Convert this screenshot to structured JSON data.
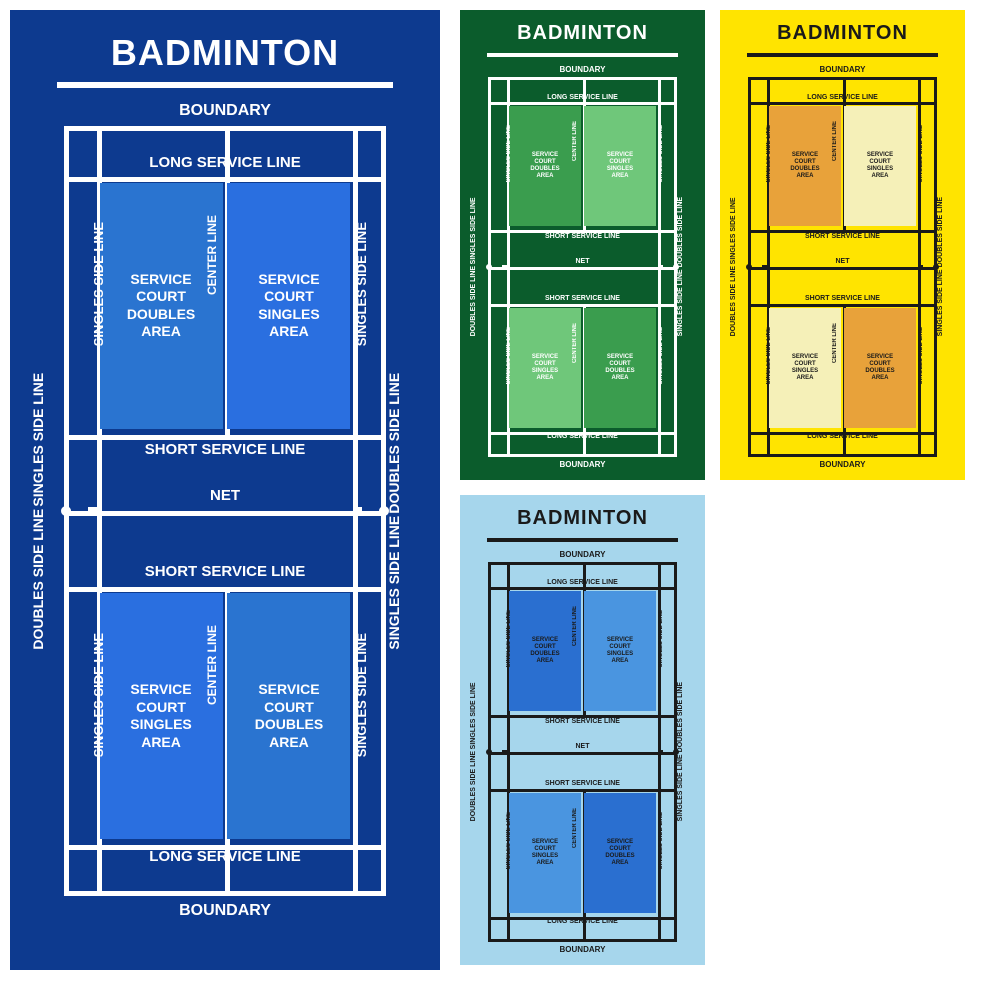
{
  "title": "BADMINTON",
  "labels": {
    "boundary": "BOUNDARY",
    "long_service": "LONG SERVICE LINE",
    "short_service": "SHORT SERVICE LINE",
    "net": "NET",
    "doubles_side": "DOUBLES SIDE LINE",
    "singles_side": "SINGLES SIDE LINE",
    "center_line": "CENTER LINE",
    "svc_doubles": "SERVICE\nCOURT\nDOUBLES\nAREA",
    "svc_singles": "SERVICE\nCOURT\nSINGLES\nAREA"
  },
  "variants": {
    "big_navy": {
      "bg": "#0d3a8f",
      "line": "#ffffff",
      "text": "#ffffff",
      "title_text": "#ffffff",
      "box_doubles": "#2a74d0",
      "box_singles": "#2a6fe0",
      "box_text": "#ffffff"
    },
    "green": {
      "bg": "#0b5c2c",
      "line": "#ffffff",
      "text": "#ffffff",
      "title_text": "#ffffff",
      "box_doubles": "#3a9d4e",
      "box_singles": "#6fc77a",
      "box_text": "#ffffff"
    },
    "yellow": {
      "bg": "#ffe400",
      "line": "#1a1a1a",
      "text": "#1a1a1a",
      "title_text": "#1a1a1a",
      "box_doubles": "#e8a23a",
      "box_singles": "#f5f0b8",
      "box_text": "#1a1a1a"
    },
    "skyblue": {
      "bg": "#a6d6ec",
      "line": "#1a1a1a",
      "text": "#1a1a1a",
      "title_text": "#1a1a1a",
      "box_doubles": "#2a6fd0",
      "box_singles": "#4a95e0",
      "box_text": "#1a1a1a"
    }
  },
  "court_geom": {
    "alley_pct": 9,
    "lsl_pct": 6,
    "svc_end_pct": 40,
    "net_pct": 50
  }
}
